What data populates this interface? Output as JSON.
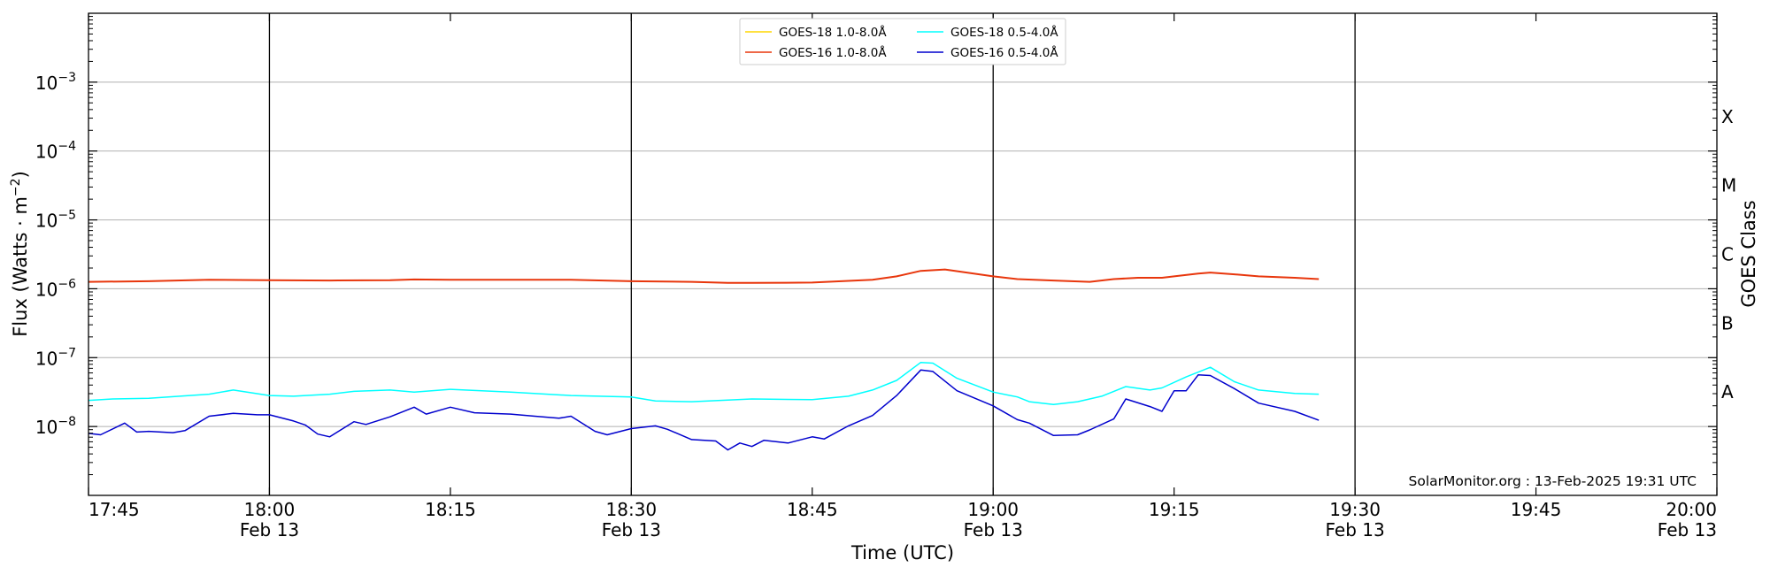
{
  "chart_data": {
    "type": "line",
    "xlabel": "Time (UTC)",
    "ylabel_main": "Flux (Watts",
    "ylabel_unit": "m",
    "ylabel_exp": "−2",
    "ylabel_close": ")",
    "y2label": "GOES Class",
    "xlim": [
      "17:45",
      "20:00"
    ],
    "ylim": [
      "1e-9",
      "1e-2"
    ],
    "y_scale": "log",
    "grid": "horizontal at decades",
    "legend_position": "top-center",
    "x_ticks": [
      {
        "time": "17:45",
        "label": "17:45",
        "date": ""
      },
      {
        "time": "18:00",
        "label": "18:00",
        "date": "Feb 13"
      },
      {
        "time": "18:15",
        "label": "18:15",
        "date": ""
      },
      {
        "time": "18:30",
        "label": "18:30",
        "date": "Feb 13"
      },
      {
        "time": "18:45",
        "label": "18:45",
        "date": ""
      },
      {
        "time": "19:00",
        "label": "19:00",
        "date": "Feb 13"
      },
      {
        "time": "19:15",
        "label": "19:15",
        "date": ""
      },
      {
        "time": "19:30",
        "label": "19:30",
        "date": "Feb 13"
      },
      {
        "time": "19:45",
        "label": "19:45",
        "date": ""
      },
      {
        "time": "20:00",
        "label": "20:00",
        "date": "Feb 13"
      }
    ],
    "vertical_lines": [
      "18:00",
      "18:30",
      "19:00",
      "19:30"
    ],
    "y_ticks": [
      {
        "exp": -8,
        "label": "10",
        "sup": "−8"
      },
      {
        "exp": -7,
        "label": "10",
        "sup": "−7"
      },
      {
        "exp": -6,
        "label": "10",
        "sup": "−6"
      },
      {
        "exp": -5,
        "label": "10",
        "sup": "−5"
      },
      {
        "exp": -4,
        "label": "10",
        "sup": "−4"
      },
      {
        "exp": -3,
        "label": "10",
        "sup": "−3"
      }
    ],
    "goes_classes": [
      {
        "label": "A",
        "exp": -7.5
      },
      {
        "label": "B",
        "exp": -6.5
      },
      {
        "label": "C",
        "exp": -5.5
      },
      {
        "label": "M",
        "exp": -4.5
      },
      {
        "label": "X",
        "exp": -3.5
      }
    ],
    "credit": "SolarMonitor.org : 13-Feb-2025 19:31 UTC",
    "series": [
      {
        "name": "GOES-18 1.0-8.0Å",
        "color": "#ffd700",
        "times": [],
        "log_values": []
      },
      {
        "name": "GOES-16 1.0-8.0Å",
        "color": "#e8360c",
        "times": [
          "17:45",
          "17:50",
          "17:55",
          "18:00",
          "18:05",
          "18:10",
          "18:12",
          "18:15",
          "18:20",
          "18:25",
          "18:30",
          "18:35",
          "18:38",
          "18:40",
          "18:45",
          "18:50",
          "18:52",
          "18:54",
          "18:56",
          "18:58",
          "19:00",
          "19:02",
          "19:05",
          "19:08",
          "19:10",
          "19:12",
          "19:14",
          "19:15",
          "19:17",
          "19:18",
          "19:20",
          "19:22",
          "19:25",
          "19:27"
        ],
        "log_values": [
          -5.9,
          -5.89,
          -5.87,
          -5.875,
          -5.88,
          -5.875,
          -5.865,
          -5.87,
          -5.87,
          -5.87,
          -5.89,
          -5.9,
          -5.915,
          -5.915,
          -5.91,
          -5.87,
          -5.82,
          -5.74,
          -5.72,
          -5.77,
          -5.82,
          -5.86,
          -5.88,
          -5.9,
          -5.86,
          -5.84,
          -5.84,
          -5.82,
          -5.78,
          -5.765,
          -5.79,
          -5.82,
          -5.84,
          -5.86
        ]
      },
      {
        "name": "GOES-18 0.5-4.0Å",
        "color": "#00ffff",
        "times": [
          "17:45",
          "17:47",
          "17:50",
          "17:55",
          "17:57",
          "18:00",
          "18:02",
          "18:05",
          "18:07",
          "18:10",
          "18:12",
          "18:15",
          "18:20",
          "18:25",
          "18:30",
          "18:32",
          "18:35",
          "18:40",
          "18:45",
          "18:48",
          "18:50",
          "18:52",
          "18:54",
          "18:55",
          "18:57",
          "19:00",
          "19:02",
          "19:03",
          "19:05",
          "19:07",
          "19:09",
          "19:11",
          "19:13",
          "19:14",
          "19:16",
          "19:18",
          "19:20",
          "19:22",
          "19:25",
          "19:27"
        ],
        "log_values": [
          -7.62,
          -7.6,
          -7.59,
          -7.53,
          -7.47,
          -7.55,
          -7.56,
          -7.53,
          -7.49,
          -7.47,
          -7.5,
          -7.46,
          -7.5,
          -7.55,
          -7.57,
          -7.63,
          -7.64,
          -7.6,
          -7.61,
          -7.56,
          -7.47,
          -7.33,
          -7.07,
          -7.08,
          -7.3,
          -7.5,
          -7.57,
          -7.64,
          -7.68,
          -7.64,
          -7.56,
          -7.42,
          -7.47,
          -7.44,
          -7.28,
          -7.14,
          -7.35,
          -7.47,
          -7.52,
          -7.53
        ]
      },
      {
        "name": "GOES-16 0.5-4.0Å",
        "color": "#0000cd",
        "times": [
          "17:45",
          "17:46",
          "17:48",
          "17:49",
          "17:50",
          "17:52",
          "17:53",
          "17:55",
          "17:57",
          "17:59",
          "18:00",
          "18:02",
          "18:03",
          "18:04",
          "18:05",
          "18:07",
          "18:08",
          "18:10",
          "18:12",
          "18:13",
          "18:15",
          "18:17",
          "18:20",
          "18:22",
          "18:24",
          "18:25",
          "18:27",
          "18:28",
          "18:30",
          "18:32",
          "18:33",
          "18:35",
          "18:37",
          "18:38",
          "18:39",
          "18:40",
          "18:41",
          "18:43",
          "18:45",
          "18:46",
          "18:48",
          "18:50",
          "18:52",
          "18:54",
          "18:55",
          "18:57",
          "19:00",
          "19:02",
          "19:03",
          "19:05",
          "19:07",
          "19:08",
          "19:10",
          "19:11",
          "19:13",
          "19:14",
          "19:15",
          "19:16",
          "19:17",
          "19:18",
          "19:20",
          "19:22",
          "19:25",
          "19:27"
        ],
        "log_values": [
          -8.1,
          -8.12,
          -7.95,
          -8.08,
          -8.07,
          -8.09,
          -8.06,
          -7.85,
          -7.81,
          -7.83,
          -7.83,
          -7.92,
          -7.98,
          -8.11,
          -8.15,
          -7.93,
          -7.97,
          -7.86,
          -7.72,
          -7.82,
          -7.72,
          -7.8,
          -7.82,
          -7.85,
          -7.88,
          -7.85,
          -8.07,
          -8.12,
          -8.03,
          -7.99,
          -8.04,
          -8.19,
          -8.21,
          -8.34,
          -8.24,
          -8.29,
          -8.2,
          -8.24,
          -8.15,
          -8.18,
          -7.99,
          -7.84,
          -7.55,
          -7.18,
          -7.2,
          -7.48,
          -7.7,
          -7.9,
          -7.95,
          -8.13,
          -8.12,
          -8.05,
          -7.89,
          -7.6,
          -7.71,
          -7.78,
          -7.48,
          -7.48,
          -7.25,
          -7.26,
          -7.45,
          -7.66,
          -7.78,
          -7.91
        ]
      }
    ]
  }
}
